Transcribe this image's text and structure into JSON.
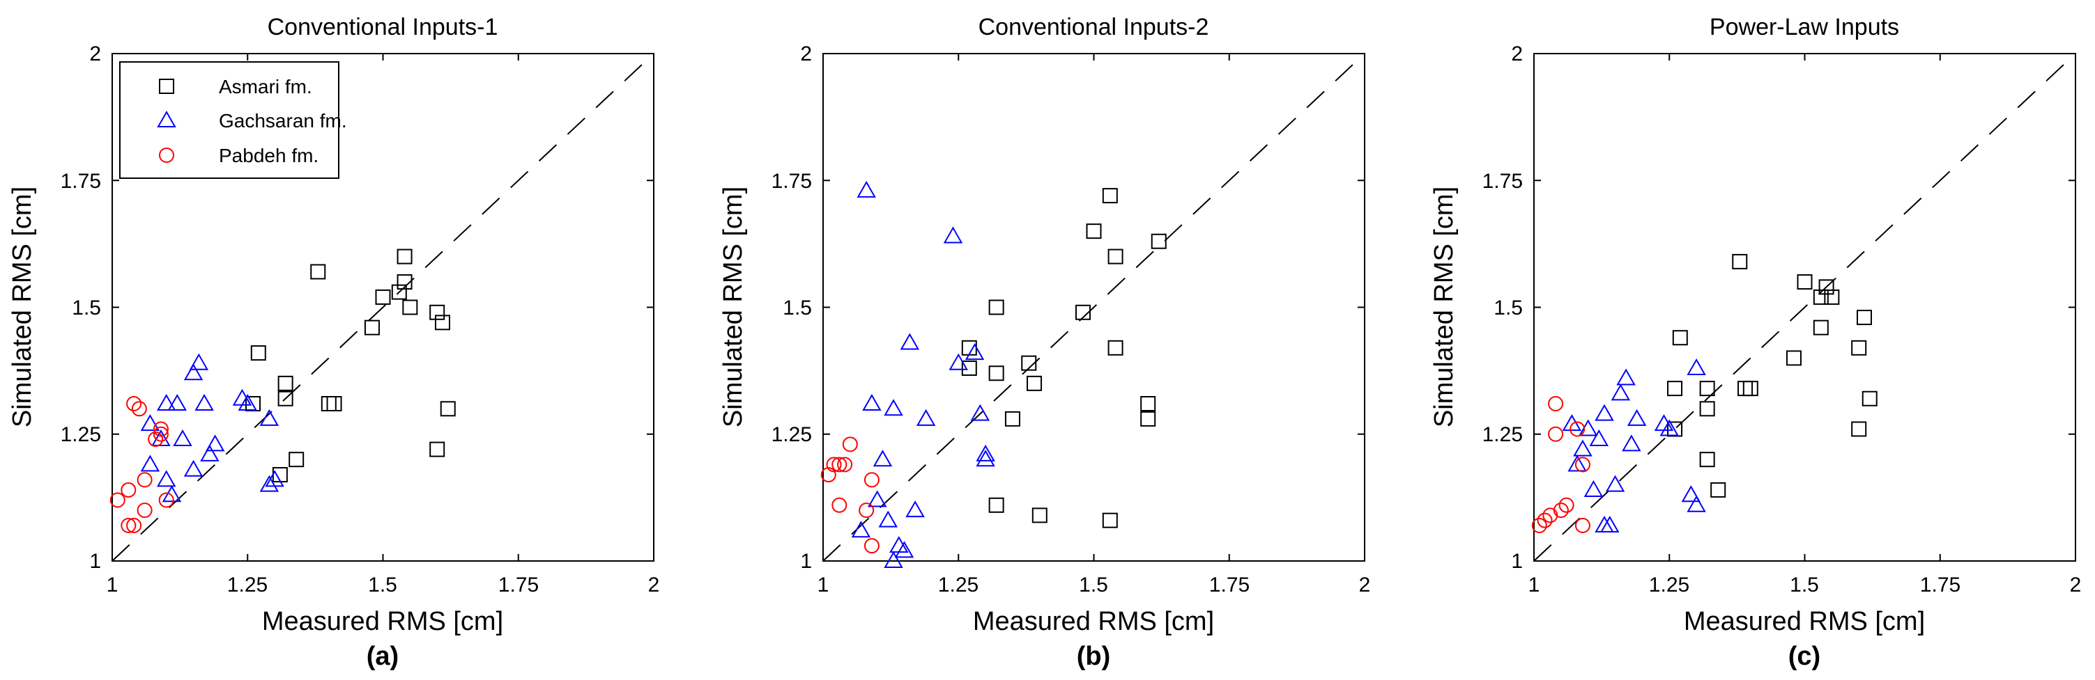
{
  "figure": {
    "letters": [
      "(a)",
      "(b)",
      "(c)"
    ]
  },
  "legend": {
    "entries": [
      {
        "label": "Asmari fm.",
        "marker": "square",
        "color": "#000000"
      },
      {
        "label": "Gachsaran fm.",
        "marker": "triangle",
        "color": "#0000ff"
      },
      {
        "label": "Pabdeh fm.",
        "marker": "circle",
        "color": "#ff0000"
      }
    ]
  },
  "chart_data": [
    {
      "type": "scatter",
      "title": "Conventional Inputs-1",
      "xlabel": "Measured RMS [cm]",
      "ylabel": "Simulated RMS [cm]",
      "xlim": [
        1,
        2
      ],
      "ylim": [
        1,
        2
      ],
      "xticks": [
        "1",
        "1.25",
        "1.5",
        "1.75",
        "2"
      ],
      "yticks": [
        "1",
        "1.25",
        "1.5",
        "1.75",
        "2"
      ],
      "reference_line": "y = x (dashed)",
      "series": [
        {
          "name": "Asmari fm.",
          "marker": "square",
          "color": "#000000",
          "x": [
            1.38,
            1.27,
            1.26,
            1.32,
            1.32,
            1.31,
            1.34,
            1.4,
            1.41,
            1.48,
            1.5,
            1.53,
            1.54,
            1.54,
            1.55,
            1.6,
            1.61,
            1.62,
            1.6
          ],
          "y": [
            1.57,
            1.41,
            1.31,
            1.35,
            1.32,
            1.17,
            1.2,
            1.31,
            1.31,
            1.46,
            1.52,
            1.53,
            1.55,
            1.6,
            1.5,
            1.49,
            1.47,
            1.3,
            1.22
          ]
        },
        {
          "name": "Gachsaran fm.",
          "marker": "triangle",
          "color": "#0000ff",
          "x": [
            1.07,
            1.09,
            1.1,
            1.1,
            1.11,
            1.12,
            1.13,
            1.15,
            1.15,
            1.16,
            1.17,
            1.18,
            1.19,
            1.24,
            1.25,
            1.29,
            1.29,
            1.3,
            1.07
          ],
          "y": [
            1.27,
            1.24,
            1.31,
            1.16,
            1.13,
            1.31,
            1.24,
            1.37,
            1.18,
            1.39,
            1.31,
            1.21,
            1.23,
            1.32,
            1.31,
            1.15,
            1.28,
            1.16,
            1.19
          ]
        },
        {
          "name": "Pabdeh fm.",
          "marker": "circle",
          "color": "#ff0000",
          "x": [
            1.01,
            1.03,
            1.04,
            1.04,
            1.05,
            1.06,
            1.06,
            1.08,
            1.09,
            1.09,
            1.1,
            1.03
          ],
          "y": [
            1.12,
            1.14,
            1.31,
            1.07,
            1.3,
            1.16,
            1.1,
            1.24,
            1.26,
            1.25,
            1.12,
            1.07
          ]
        }
      ]
    },
    {
      "type": "scatter",
      "title": "Conventional Inputs-2",
      "xlabel": "Measured RMS [cm]",
      "ylabel": "Simulated RMS [cm]",
      "xlim": [
        1,
        2
      ],
      "ylim": [
        1,
        2
      ],
      "xticks": [
        "1",
        "1.25",
        "1.5",
        "1.75",
        "2"
      ],
      "yticks": [
        "1",
        "1.25",
        "1.5",
        "1.75",
        "2"
      ],
      "reference_line": "y = x (dashed)",
      "series": [
        {
          "name": "Asmari fm.",
          "marker": "square",
          "color": "#000000",
          "x": [
            1.27,
            1.27,
            1.32,
            1.32,
            1.32,
            1.35,
            1.38,
            1.39,
            1.4,
            1.48,
            1.5,
            1.53,
            1.54,
            1.54,
            1.53,
            1.6,
            1.6,
            1.62
          ],
          "y": [
            1.42,
            1.38,
            1.5,
            1.37,
            1.11,
            1.28,
            1.39,
            1.35,
            1.09,
            1.49,
            1.65,
            1.72,
            1.6,
            1.42,
            1.08,
            1.28,
            1.31,
            1.63
          ]
        },
        {
          "name": "Gachsaran fm.",
          "marker": "triangle",
          "color": "#0000ff",
          "x": [
            1.08,
            1.09,
            1.07,
            1.1,
            1.11,
            1.12,
            1.13,
            1.14,
            1.15,
            1.16,
            1.17,
            1.19,
            1.24,
            1.25,
            1.28,
            1.29,
            1.3,
            1.3,
            1.13
          ],
          "y": [
            1.73,
            1.31,
            1.06,
            1.12,
            1.2,
            1.08,
            1.3,
            1.03,
            1.02,
            1.43,
            1.1,
            1.28,
            1.64,
            1.39,
            1.41,
            1.29,
            1.21,
            1.2,
            1.0
          ]
        },
        {
          "name": "Pabdeh fm.",
          "marker": "circle",
          "color": "#ff0000",
          "x": [
            1.01,
            1.02,
            1.03,
            1.04,
            1.05,
            1.08,
            1.09,
            1.09,
            1.03
          ],
          "y": [
            1.17,
            1.19,
            1.19,
            1.19,
            1.23,
            1.1,
            1.03,
            1.16,
            1.11
          ]
        }
      ]
    },
    {
      "type": "scatter",
      "title": "Power-Law Inputs",
      "xlabel": "Measured RMS [cm]",
      "ylabel": "Simulated RMS [cm]",
      "xlim": [
        1,
        2
      ],
      "ylim": [
        1,
        2
      ],
      "xticks": [
        "1",
        "1.25",
        "1.5",
        "1.75",
        "2"
      ],
      "yticks": [
        "1",
        "1.25",
        "1.5",
        "1.75",
        "2"
      ],
      "reference_line": "y = x (dashed)",
      "series": [
        {
          "name": "Asmari fm.",
          "marker": "square",
          "color": "#000000",
          "x": [
            1.27,
            1.26,
            1.26,
            1.32,
            1.32,
            1.32,
            1.34,
            1.38,
            1.39,
            1.4,
            1.48,
            1.5,
            1.53,
            1.53,
            1.54,
            1.55,
            1.6,
            1.6,
            1.61,
            1.62
          ],
          "y": [
            1.44,
            1.34,
            1.26,
            1.34,
            1.3,
            1.2,
            1.14,
            1.59,
            1.34,
            1.34,
            1.4,
            1.55,
            1.46,
            1.52,
            1.54,
            1.52,
            1.42,
            1.26,
            1.48,
            1.32
          ]
        },
        {
          "name": "Gachsaran fm.",
          "marker": "triangle",
          "color": "#0000ff",
          "x": [
            1.07,
            1.08,
            1.09,
            1.1,
            1.11,
            1.12,
            1.13,
            1.14,
            1.15,
            1.16,
            1.17,
            1.18,
            1.19,
            1.24,
            1.25,
            1.29,
            1.3,
            1.3,
            1.13
          ],
          "y": [
            1.27,
            1.19,
            1.22,
            1.26,
            1.14,
            1.24,
            1.29,
            1.07,
            1.15,
            1.33,
            1.36,
            1.23,
            1.28,
            1.27,
            1.26,
            1.13,
            1.38,
            1.11,
            1.07
          ]
        },
        {
          "name": "Pabdeh fm.",
          "marker": "circle",
          "color": "#ff0000",
          "x": [
            1.01,
            1.02,
            1.03,
            1.04,
            1.04,
            1.05,
            1.06,
            1.08,
            1.09,
            1.09
          ],
          "y": [
            1.07,
            1.08,
            1.09,
            1.25,
            1.31,
            1.1,
            1.11,
            1.26,
            1.19,
            1.07
          ]
        }
      ]
    }
  ]
}
